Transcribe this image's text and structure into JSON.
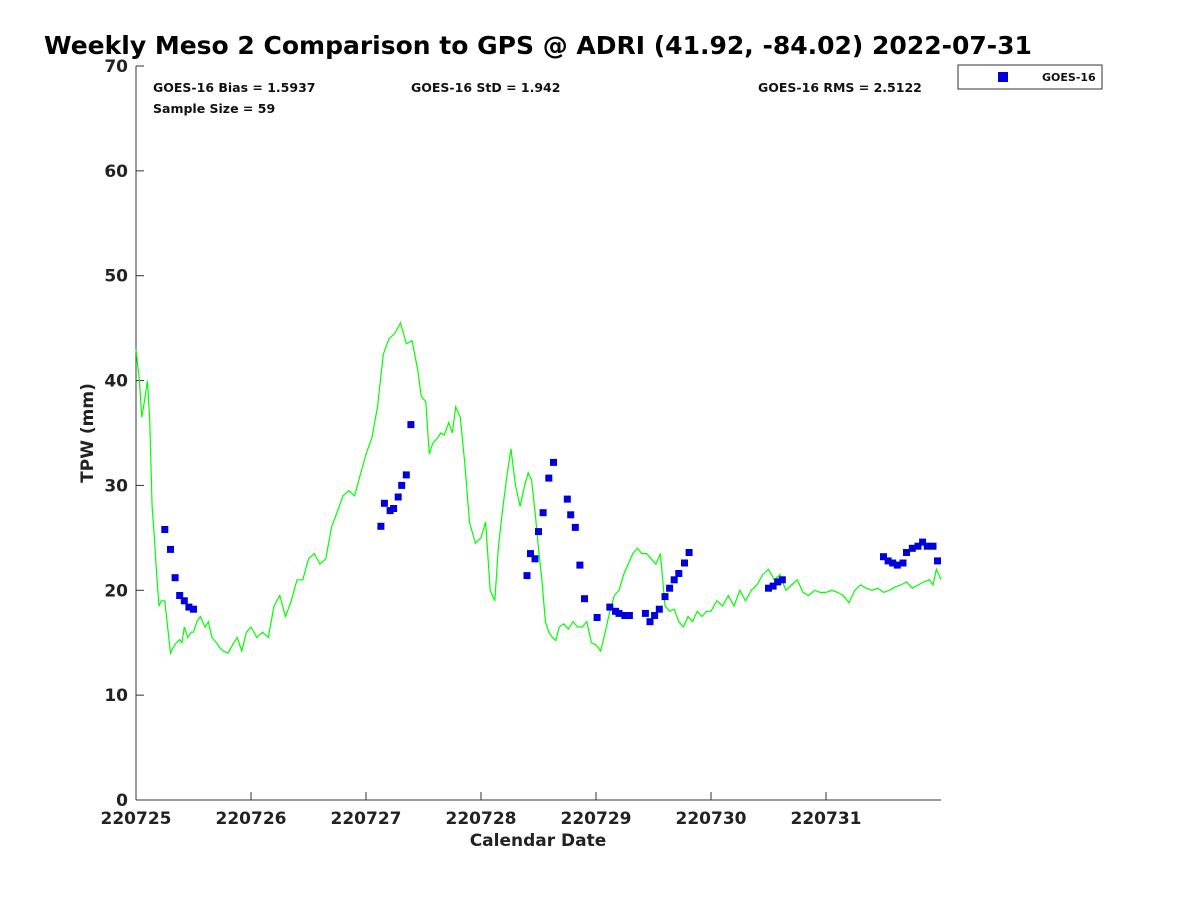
{
  "title": "Weekly Meso 2 Comparison to GPS @ ADRI (41.92, -84.02) 2022-07-31",
  "stats": {
    "bias": "GOES-16 Bias = 1.5937",
    "std": "GOES-16 StD = 1.942",
    "rms": "GOES-16 RMS = 2.5122",
    "sample": "Sample Size = 59"
  },
  "chart_data": {
    "type": "scatter",
    "xlabel": "Calendar Date",
    "ylabel": "TPW (mm)",
    "xlim": [
      0,
      7
    ],
    "ylim": [
      0,
      70
    ],
    "grid": false,
    "legend_position": "outside-top-right",
    "x_tick_values": [
      0,
      1,
      2,
      3,
      4,
      5,
      6
    ],
    "x_tick_labels": [
      "220725",
      "220726",
      "220727",
      "220728",
      "220729",
      "220730",
      "220731"
    ],
    "y_ticks": [
      0,
      10,
      20,
      30,
      40,
      50,
      60,
      70
    ],
    "colors": {
      "gps_line": "#00ff00",
      "goes_markers": "#0000dd",
      "axis": "#333333"
    },
    "series": [
      {
        "name": "GOES-16",
        "kind": "scatter",
        "marker": "square",
        "x": [
          0.25,
          0.3,
          0.34,
          0.38,
          0.42,
          0.46,
          0.5,
          2.13,
          2.16,
          2.21,
          2.24,
          2.28,
          2.31,
          2.35,
          2.39,
          3.4,
          3.43,
          3.47,
          3.5,
          3.54,
          3.59,
          3.63,
          3.75,
          3.78,
          3.82,
          3.86,
          3.9,
          4.01,
          4.12,
          4.17,
          4.2,
          4.25,
          4.29,
          4.43,
          4.47,
          4.51,
          4.55,
          4.6,
          4.64,
          4.68,
          4.72,
          4.77,
          4.81,
          5.5,
          5.54,
          5.58,
          5.62,
          6.5,
          6.54,
          6.58,
          6.62,
          6.67,
          6.7,
          6.75,
          6.8,
          6.84,
          6.88,
          6.93,
          6.97
        ],
        "values": [
          25.8,
          23.9,
          21.2,
          19.5,
          19.0,
          18.4,
          18.2,
          26.1,
          28.3,
          27.6,
          27.8,
          28.9,
          30.0,
          31.0,
          35.8,
          21.4,
          23.5,
          23.0,
          25.6,
          27.4,
          30.7,
          32.2,
          28.7,
          27.2,
          26.0,
          22.4,
          19.2,
          17.4,
          18.4,
          18.0,
          17.8,
          17.6,
          17.6,
          17.8,
          17.0,
          17.6,
          18.2,
          19.4,
          20.2,
          21.0,
          21.6,
          22.6,
          23.6,
          20.2,
          20.4,
          20.8,
          21.0,
          23.2,
          22.8,
          22.6,
          22.4,
          22.6,
          23.6,
          24.0,
          24.2,
          24.6,
          24.2,
          24.2,
          22.8
        ]
      },
      {
        "kind": "line",
        "x": [
          0.0,
          0.03,
          0.05,
          0.08,
          0.1,
          0.12,
          0.14,
          0.16,
          0.18,
          0.2,
          0.22,
          0.25,
          0.28,
          0.3,
          0.32,
          0.35,
          0.38,
          0.4,
          0.42,
          0.45,
          0.48,
          0.5,
          0.53,
          0.56,
          0.6,
          0.63,
          0.66,
          0.7,
          0.73,
          0.76,
          0.8,
          0.84,
          0.88,
          0.92,
          0.96,
          1.0,
          1.05,
          1.1,
          1.15,
          1.2,
          1.25,
          1.3,
          1.35,
          1.4,
          1.45,
          1.5,
          1.55,
          1.6,
          1.65,
          1.7,
          1.75,
          1.8,
          1.85,
          1.9,
          1.95,
          2.0,
          2.05,
          2.1,
          2.15,
          2.2,
          2.25,
          2.3,
          2.35,
          2.4,
          2.45,
          2.48,
          2.52,
          2.55,
          2.58,
          2.62,
          2.65,
          2.68,
          2.72,
          2.75,
          2.78,
          2.82,
          2.86,
          2.9,
          2.95,
          3.0,
          3.04,
          3.08,
          3.12,
          3.15,
          3.18,
          3.22,
          3.26,
          3.3,
          3.34,
          3.38,
          3.41,
          3.44,
          3.47,
          3.5,
          3.53,
          3.56,
          3.59,
          3.62,
          3.65,
          3.68,
          3.72,
          3.76,
          3.8,
          3.84,
          3.88,
          3.92,
          3.96,
          4.0,
          4.04,
          4.08,
          4.12,
          4.16,
          4.2,
          4.24,
          4.28,
          4.32,
          4.36,
          4.4,
          4.44,
          4.48,
          4.52,
          4.56,
          4.6,
          4.64,
          4.68,
          4.72,
          4.76,
          4.8,
          4.84,
          4.88,
          4.92,
          4.96,
          5.0,
          5.05,
          5.1,
          5.15,
          5.2,
          5.25,
          5.3,
          5.35,
          5.4,
          5.45,
          5.5,
          5.55,
          5.6,
          5.65,
          5.7,
          5.75,
          5.8,
          5.85,
          5.9,
          5.95,
          6.0,
          6.05,
          6.1,
          6.15,
          6.2,
          6.25,
          6.3,
          6.35,
          6.4,
          6.45,
          6.5,
          6.55,
          6.6,
          6.65,
          6.7,
          6.75,
          6.8,
          6.85,
          6.9,
          6.93,
          6.96,
          7.0
        ],
        "values": [
          43.0,
          40.0,
          36.5,
          38.5,
          40.0,
          36.0,
          28.0,
          25.0,
          21.5,
          18.5,
          19.0,
          19.0,
          16.0,
          14.0,
          14.5,
          15.0,
          15.3,
          15.0,
          16.5,
          15.5,
          16.0,
          16.0,
          17.0,
          17.5,
          16.5,
          17.0,
          15.5,
          15.0,
          14.5,
          14.2,
          14.0,
          14.8,
          15.5,
          14.2,
          16.0,
          16.5,
          15.5,
          16.0,
          15.5,
          18.5,
          19.5,
          17.5,
          19.0,
          21.0,
          21.0,
          23.0,
          23.5,
          22.5,
          23.0,
          26.0,
          27.5,
          29.0,
          29.5,
          29.0,
          31.0,
          33.0,
          34.5,
          37.5,
          42.5,
          44.0,
          44.5,
          45.5,
          43.5,
          43.8,
          41.0,
          38.5,
          38.0,
          33.0,
          34.0,
          34.5,
          35.0,
          34.8,
          36.0,
          35.0,
          37.5,
          36.5,
          32.0,
          26.5,
          24.5,
          25.0,
          26.5,
          20.0,
          19.0,
          24.0,
          27.0,
          30.5,
          33.5,
          30.0,
          28.0,
          30.0,
          31.2,
          30.5,
          27.5,
          24.0,
          21.0,
          17.0,
          16.0,
          15.5,
          15.2,
          16.5,
          16.8,
          16.3,
          17.0,
          16.5,
          16.5,
          17.0,
          15.0,
          14.8,
          14.2,
          16.0,
          18.0,
          19.5,
          20.0,
          21.5,
          22.5,
          23.5,
          24.0,
          23.5,
          23.5,
          23.0,
          22.5,
          23.5,
          18.5,
          18.0,
          18.2,
          17.0,
          16.5,
          17.5,
          17.0,
          18.0,
          17.5,
          18.0,
          18.0,
          19.0,
          18.5,
          19.5,
          18.5,
          20.0,
          19.0,
          20.0,
          20.5,
          21.5,
          22.0,
          21.0,
          21.5,
          20.0,
          20.5,
          21.0,
          19.8,
          19.5,
          20.0,
          19.8,
          19.8,
          20.0,
          19.8,
          19.5,
          18.8,
          20.0,
          20.5,
          20.2,
          20.0,
          20.2,
          19.8,
          20.0,
          20.3,
          20.5,
          20.8,
          20.2,
          20.5,
          20.8,
          21.0,
          20.5,
          22.0,
          21.0
        ]
      }
    ]
  }
}
